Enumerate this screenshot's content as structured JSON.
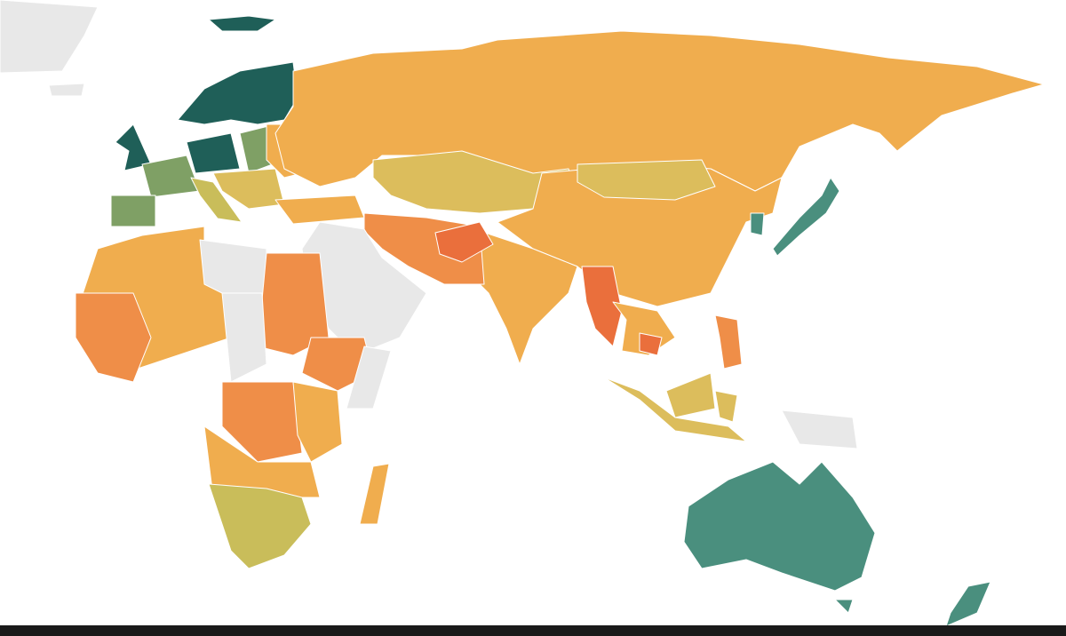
{
  "palette": [
    "#1f5f58",
    "#4a8f7e",
    "#7fa065",
    "#c9bd5a",
    "#dcbd5c",
    "#f0ad4e",
    "#ef8e48",
    "#ea6f3c",
    "#e8e8e8",
    "#1a1a1a"
  ]
}
